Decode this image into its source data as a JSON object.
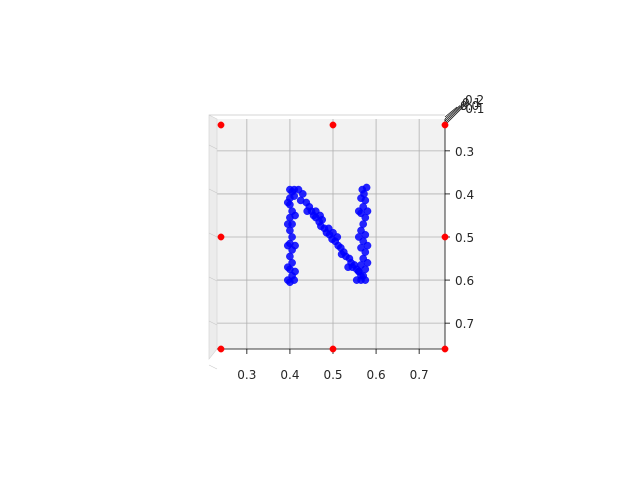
{
  "chart_data": {
    "type": "scatter",
    "projection": "3d",
    "view": "top-down",
    "title": "",
    "xlabel": "",
    "ylabel": "",
    "zlabel": "",
    "xlim": [
      0.24,
      0.76
    ],
    "ylim": [
      0.24,
      0.76
    ],
    "y_inverted": true,
    "grid": true,
    "pane_color": "#f2f2f2",
    "x_ticks": [
      "0.3",
      "0.4",
      "0.5",
      "0.6",
      "0.7"
    ],
    "y_ticks": [
      "0.3",
      "0.4",
      "0.5",
      "0.6",
      "0.7"
    ],
    "z_ticks": [
      "0.2",
      "0.1",
      "0.0",
      "-0.1"
    ],
    "series": [
      {
        "color": "#0000ff",
        "marker": "circle",
        "description_of_shape": "letter N",
        "points": [
          [
            0.4,
            0.39
          ],
          [
            0.41,
            0.39
          ],
          [
            0.405,
            0.395
          ],
          [
            0.4,
            0.41
          ],
          [
            0.41,
            0.405
          ],
          [
            0.4,
            0.425
          ],
          [
            0.405,
            0.44
          ],
          [
            0.4,
            0.455
          ],
          [
            0.405,
            0.47
          ],
          [
            0.4,
            0.485
          ],
          [
            0.405,
            0.5
          ],
          [
            0.4,
            0.515
          ],
          [
            0.405,
            0.53
          ],
          [
            0.4,
            0.545
          ],
          [
            0.405,
            0.56
          ],
          [
            0.4,
            0.575
          ],
          [
            0.405,
            0.59
          ],
          [
            0.4,
            0.605
          ],
          [
            0.41,
            0.6
          ],
          [
            0.395,
            0.6
          ],
          [
            0.395,
            0.42
          ],
          [
            0.395,
            0.47
          ],
          [
            0.395,
            0.52
          ],
          [
            0.395,
            0.57
          ],
          [
            0.412,
            0.45
          ],
          [
            0.412,
            0.52
          ],
          [
            0.412,
            0.58
          ],
          [
            0.42,
            0.39
          ],
          [
            0.43,
            0.4
          ],
          [
            0.425,
            0.415
          ],
          [
            0.438,
            0.42
          ],
          [
            0.445,
            0.43
          ],
          [
            0.45,
            0.44
          ],
          [
            0.455,
            0.45
          ],
          [
            0.46,
            0.455
          ],
          [
            0.468,
            0.465
          ],
          [
            0.472,
            0.475
          ],
          [
            0.48,
            0.48
          ],
          [
            0.485,
            0.49
          ],
          [
            0.492,
            0.495
          ],
          [
            0.498,
            0.505
          ],
          [
            0.505,
            0.51
          ],
          [
            0.512,
            0.52
          ],
          [
            0.518,
            0.525
          ],
          [
            0.525,
            0.535
          ],
          [
            0.53,
            0.545
          ],
          [
            0.538,
            0.55
          ],
          [
            0.542,
            0.56
          ],
          [
            0.55,
            0.565
          ],
          [
            0.555,
            0.575
          ],
          [
            0.56,
            0.58
          ],
          [
            0.565,
            0.59
          ],
          [
            0.44,
            0.44
          ],
          [
            0.46,
            0.44
          ],
          [
            0.47,
            0.45
          ],
          [
            0.49,
            0.48
          ],
          [
            0.5,
            0.49
          ],
          [
            0.51,
            0.5
          ],
          [
            0.52,
            0.54
          ],
          [
            0.545,
            0.57
          ],
          [
            0.535,
            0.57
          ],
          [
            0.475,
            0.46
          ],
          [
            0.568,
            0.39
          ],
          [
            0.578,
            0.385
          ],
          [
            0.572,
            0.4
          ],
          [
            0.565,
            0.41
          ],
          [
            0.575,
            0.415
          ],
          [
            0.57,
            0.43
          ],
          [
            0.565,
            0.445
          ],
          [
            0.575,
            0.455
          ],
          [
            0.57,
            0.47
          ],
          [
            0.565,
            0.485
          ],
          [
            0.575,
            0.495
          ],
          [
            0.57,
            0.51
          ],
          [
            0.565,
            0.525
          ],
          [
            0.575,
            0.535
          ],
          [
            0.57,
            0.55
          ],
          [
            0.565,
            0.565
          ],
          [
            0.575,
            0.575
          ],
          [
            0.57,
            0.59
          ],
          [
            0.565,
            0.6
          ],
          [
            0.575,
            0.6
          ],
          [
            0.58,
            0.56
          ],
          [
            0.58,
            0.52
          ],
          [
            0.58,
            0.44
          ],
          [
            0.56,
            0.5
          ],
          [
            0.56,
            0.44
          ],
          [
            0.56,
            0.58
          ],
          [
            0.555,
            0.6
          ]
        ]
      },
      {
        "color": "#ff0000",
        "marker": "circle",
        "description_of_shape": "corner and edge markers",
        "points": [
          [
            0.24,
            0.24
          ],
          [
            0.5,
            0.24
          ],
          [
            0.76,
            0.24
          ],
          [
            0.24,
            0.5
          ],
          [
            0.76,
            0.5
          ],
          [
            0.24,
            0.76
          ],
          [
            0.5,
            0.76
          ],
          [
            0.76,
            0.76
          ]
        ]
      }
    ]
  }
}
